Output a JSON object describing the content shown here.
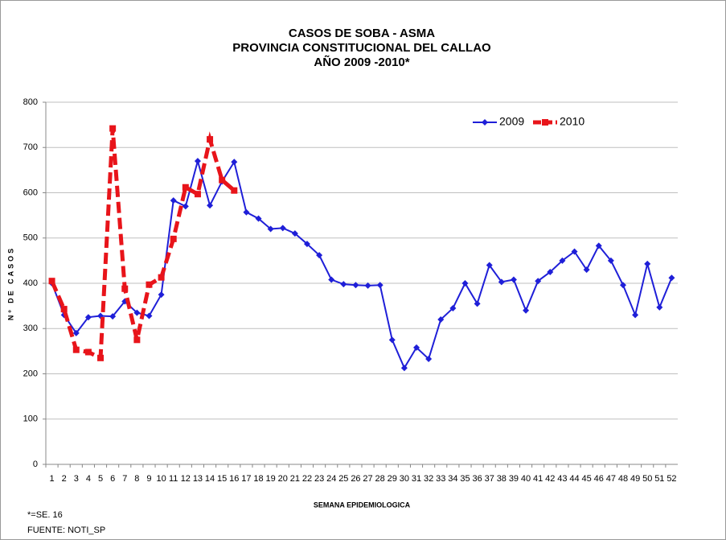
{
  "chart_data": {
    "type": "line",
    "title": [
      "CASOS DE SOBA -  ASMA",
      "PROVINCIA CONSTITUCIONAL DEL CALLAO",
      "AÑO 2009 -2010*"
    ],
    "xlabel": "SEMANA EPIDEMIOLOGICA",
    "ylabel": "Nº DE CASOS",
    "footnotes": [
      "*=SE. 16",
      "FUENTE: NOTI_SP"
    ],
    "categories": [
      "1",
      "2",
      "3",
      "4",
      "5",
      "6",
      "7",
      "8",
      "9",
      "10",
      "11",
      "12",
      "13",
      "14",
      "15",
      "16",
      "17",
      "18",
      "19",
      "20",
      "21",
      "22",
      "23",
      "24",
      "25",
      "26",
      "27",
      "28",
      "29",
      "30",
      "31",
      "32",
      "33",
      "34",
      "35",
      "36",
      "37",
      "38",
      "39",
      "40",
      "41",
      "42",
      "43",
      "44",
      "45",
      "46",
      "47",
      "48",
      "49",
      "50",
      "51",
      "52"
    ],
    "series": [
      {
        "name": "2009",
        "color": "#1f1fd8",
        "values": [
          400,
          330,
          290,
          325,
          328,
          327,
          360,
          335,
          328,
          375,
          583,
          570,
          670,
          572,
          625,
          668,
          557,
          543,
          520,
          522,
          510,
          487,
          462,
          408,
          398,
          396,
          395,
          396,
          275,
          213,
          258,
          233,
          320,
          345,
          400,
          355,
          440,
          403,
          408,
          340,
          405,
          425,
          450,
          470,
          430,
          483,
          450,
          396,
          330,
          443,
          347,
          412
        ]
      },
      {
        "name": "2010",
        "color": "#e8141a",
        "values": [
          405,
          343,
          253,
          248,
          235,
          742,
          388,
          275,
          397,
          413,
          498,
          612,
          597,
          718,
          628,
          605,
          null,
          null,
          null,
          null,
          null,
          null,
          null,
          null,
          null,
          null,
          null,
          null,
          null,
          null,
          null,
          null,
          null,
          null,
          null,
          null,
          null,
          null,
          null,
          null,
          null,
          null,
          null,
          null,
          null,
          null,
          null,
          null,
          null,
          null,
          null,
          null
        ]
      }
    ],
    "ylim": [
      0,
      800
    ],
    "yticks": [
      0,
      100,
      200,
      300,
      400,
      500,
      600,
      700,
      800
    ],
    "grid": true,
    "legend": "top-right"
  }
}
